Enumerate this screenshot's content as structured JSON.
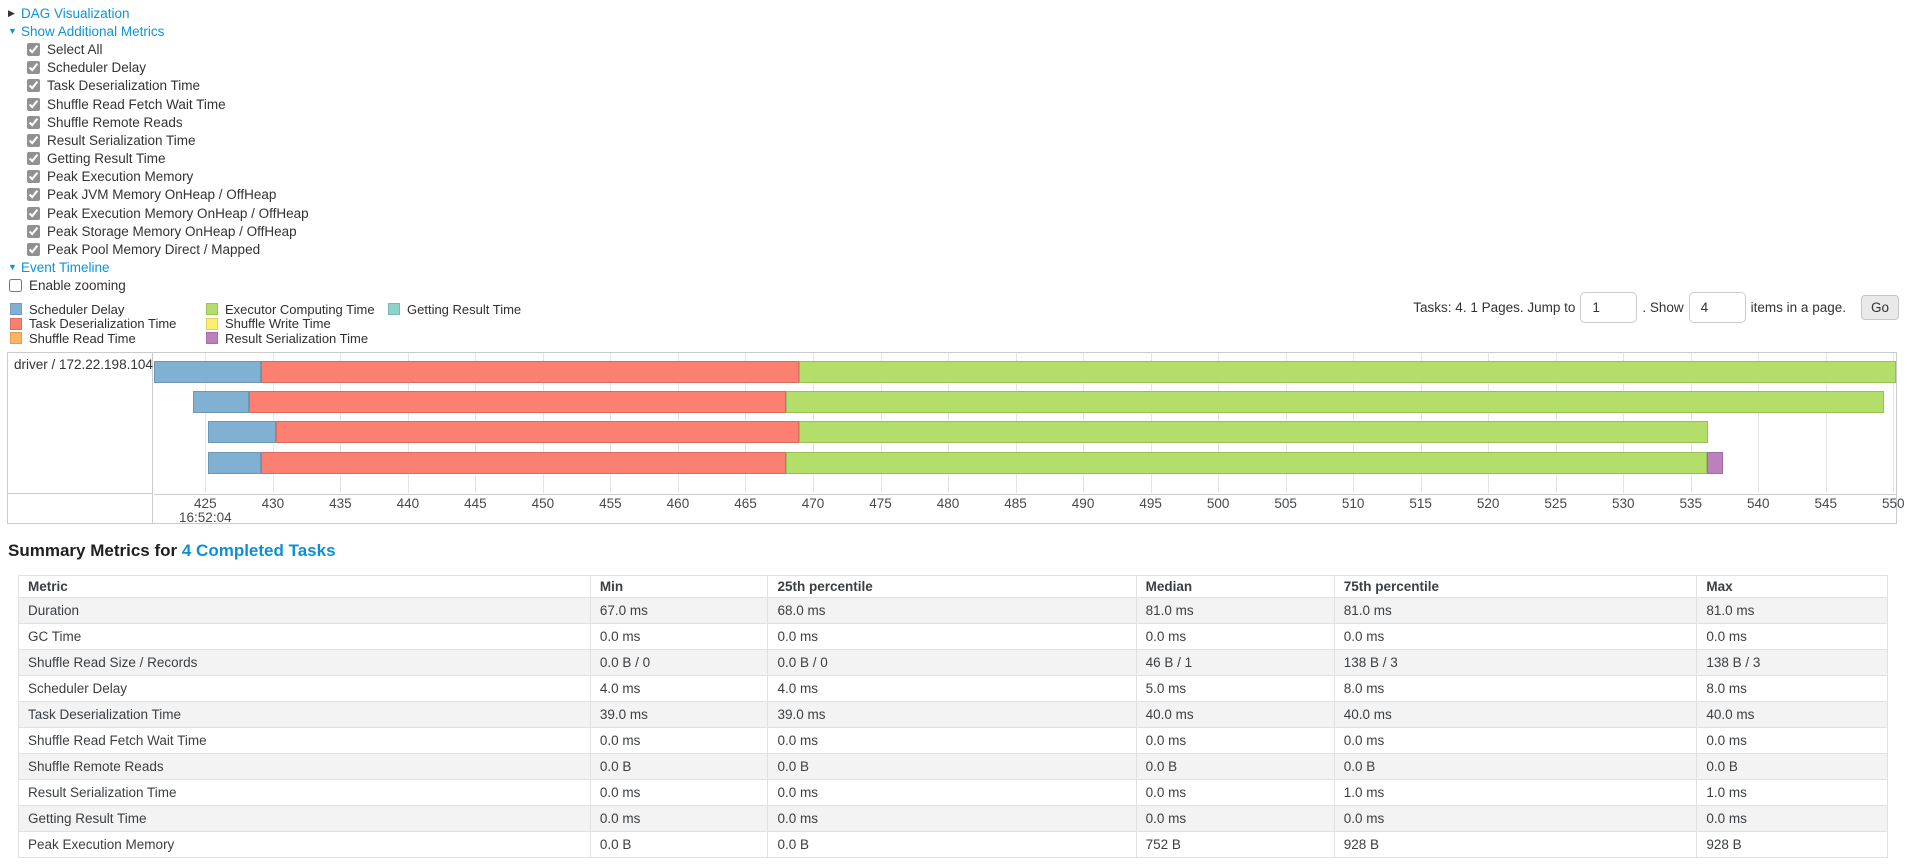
{
  "colors": {
    "link": "#0e93d6",
    "scheduler_delay": "#80B1D3",
    "task_deserialization": "#FB8072",
    "shuffle_read": "#FDB462",
    "executor_computing": "#B3DE69",
    "shuffle_write": "#FFED6F",
    "result_serialization": "#BC80BD",
    "getting_result": "#8DD3C7"
  },
  "controls": {
    "dag_label": "DAG Visualization",
    "metrics_label": "Show Additional Metrics",
    "metric_checkboxes": [
      {
        "label": "Select All",
        "checked": true
      },
      {
        "label": "Scheduler Delay",
        "checked": true
      },
      {
        "label": "Task Deserialization Time",
        "checked": true
      },
      {
        "label": "Shuffle Read Fetch Wait Time",
        "checked": true
      },
      {
        "label": "Shuffle Remote Reads",
        "checked": true
      },
      {
        "label": "Result Serialization Time",
        "checked": true
      },
      {
        "label": "Getting Result Time",
        "checked": true
      },
      {
        "label": "Peak Execution Memory",
        "checked": true
      },
      {
        "label": "Peak JVM Memory OnHeap / OffHeap",
        "checked": true
      },
      {
        "label": "Peak Execution Memory OnHeap / OffHeap",
        "checked": true
      },
      {
        "label": "Peak Storage Memory OnHeap / OffHeap",
        "checked": true
      },
      {
        "label": "Peak Pool Memory Direct / Mapped",
        "checked": true
      }
    ],
    "event_timeline_label": "Event Timeline",
    "enable_zooming": {
      "label": "Enable zooming",
      "checked": false
    }
  },
  "pagination": {
    "tasks_text": "Tasks: 4. 1 Pages. Jump to",
    "jump_value": "1",
    "show_text": ". Show",
    "show_value": "4",
    "items_text": "items in a page.",
    "go_label": "Go"
  },
  "legend": {
    "columns": [
      [
        {
          "label": "Scheduler Delay",
          "kind": "scheduler_delay"
        },
        {
          "label": "Task Deserialization Time",
          "kind": "task_deserialization"
        },
        {
          "label": "Shuffle Read Time",
          "kind": "shuffle_read"
        }
      ],
      [
        {
          "label": "Executor Computing Time",
          "kind": "executor_computing"
        },
        {
          "label": "Shuffle Write Time",
          "kind": "shuffle_write"
        },
        {
          "label": "Result Serialization Time",
          "kind": "result_serialization"
        }
      ],
      [
        {
          "label": "Getting Result Time",
          "kind": "getting_result"
        }
      ]
    ]
  },
  "chart_data": {
    "type": "timeline",
    "group_label": "driver / 172.22.198.104",
    "axis": {
      "min": 421.2,
      "max": 550.2,
      "tick_start": 425,
      "tick_end": 550,
      "tick_step": 5,
      "time_label": "16:52:04",
      "time_label_at": 425
    },
    "tasks": [
      [
        {
          "kind": "scheduler_delay",
          "start": 421.2,
          "end": 429.1
        },
        {
          "kind": "task_deserialization",
          "start": 429.1,
          "end": 469.0
        },
        {
          "kind": "executor_computing",
          "start": 469.0,
          "end": 550.2
        }
      ],
      [
        {
          "kind": "scheduler_delay",
          "start": 424.1,
          "end": 428.2
        },
        {
          "kind": "task_deserialization",
          "start": 428.2,
          "end": 468.0
        },
        {
          "kind": "executor_computing",
          "start": 468.0,
          "end": 549.3
        }
      ],
      [
        {
          "kind": "scheduler_delay",
          "start": 425.2,
          "end": 430.2
        },
        {
          "kind": "task_deserialization",
          "start": 430.2,
          "end": 469.0
        },
        {
          "kind": "executor_computing",
          "start": 469.0,
          "end": 536.3
        }
      ],
      [
        {
          "kind": "scheduler_delay",
          "start": 425.2,
          "end": 429.1
        },
        {
          "kind": "task_deserialization",
          "start": 429.1,
          "end": 468.0
        },
        {
          "kind": "executor_computing",
          "start": 468.0,
          "end": 536.2
        },
        {
          "kind": "result_serialization",
          "start": 536.2,
          "end": 537.4
        }
      ]
    ]
  },
  "summary": {
    "title_prefix": "Summary Metrics for",
    "title_link": "4 Completed Tasks",
    "table": {
      "headers": [
        "Metric",
        "Min",
        "25th percentile",
        "Median",
        "75th percentile",
        "Max"
      ],
      "rows": [
        [
          "Duration",
          "67.0 ms",
          "68.0 ms",
          "81.0 ms",
          "81.0 ms",
          "81.0 ms"
        ],
        [
          "GC Time",
          "0.0 ms",
          "0.0 ms",
          "0.0 ms",
          "0.0 ms",
          "0.0 ms"
        ],
        [
          "Shuffle Read Size / Records",
          "0.0 B / 0",
          "0.0 B / 0",
          "46 B / 1",
          "138 B / 3",
          "138 B / 3"
        ],
        [
          "Scheduler Delay",
          "4.0 ms",
          "4.0 ms",
          "5.0 ms",
          "8.0 ms",
          "8.0 ms"
        ],
        [
          "Task Deserialization Time",
          "39.0 ms",
          "39.0 ms",
          "40.0 ms",
          "40.0 ms",
          "40.0 ms"
        ],
        [
          "Shuffle Read Fetch Wait Time",
          "0.0 ms",
          "0.0 ms",
          "0.0 ms",
          "0.0 ms",
          "0.0 ms"
        ],
        [
          "Shuffle Remote Reads",
          "0.0 B",
          "0.0 B",
          "0.0 B",
          "0.0 B",
          "0.0 B"
        ],
        [
          "Result Serialization Time",
          "0.0 ms",
          "0.0 ms",
          "0.0 ms",
          "1.0 ms",
          "1.0 ms"
        ],
        [
          "Getting Result Time",
          "0.0 ms",
          "0.0 ms",
          "0.0 ms",
          "0.0 ms",
          "0.0 ms"
        ],
        [
          "Peak Execution Memory",
          "0.0 B",
          "0.0 B",
          "752 B",
          "928 B",
          "928 B"
        ]
      ]
    }
  }
}
